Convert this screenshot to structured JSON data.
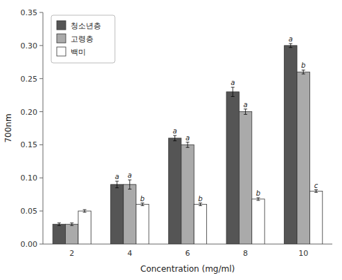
{
  "chart_data": {
    "type": "bar",
    "categories": [
      "2",
      "4",
      "6",
      "8",
      "10"
    ],
    "series": [
      {
        "name": "청소년층",
        "color": "#555555",
        "values": [
          0.03,
          0.09,
          0.16,
          0.23,
          0.3
        ],
        "errors": [
          0.002,
          0.005,
          0.004,
          0.007,
          0.003
        ],
        "annotations": [
          null,
          "a",
          "a",
          "a",
          "a"
        ]
      },
      {
        "name": "고령층",
        "color": "#aaaaaa",
        "values": [
          0.03,
          0.09,
          0.15,
          0.2,
          0.26
        ],
        "errors": [
          0.002,
          0.007,
          0.004,
          0.004,
          0.003
        ],
        "annotations": [
          null,
          "a",
          "a",
          "a",
          "b"
        ]
      },
      {
        "name": "백미",
        "color": "#ffffff",
        "values": [
          0.05,
          0.06,
          0.06,
          0.068,
          0.08
        ],
        "errors": [
          0.002,
          0.002,
          0.002,
          0.002,
          0.002
        ],
        "annotations": [
          null,
          "b",
          "b",
          "b",
          "c"
        ]
      }
    ],
    "xlabel": "Concentration (mg/ml)",
    "ylabel": "700nm",
    "ylim": [
      0,
      0.35
    ],
    "yticks": [
      {
        "value": 0,
        "label": "0.00"
      },
      0.05,
      {
        "value": 0.1,
        "label": "0.10"
      },
      0.15,
      {
        "value": 0.2,
        "label": "0.20"
      },
      0.25,
      {
        "value": 0.3,
        "label": "0.30"
      },
      0.35
    ],
    "grid": false,
    "legend": "upper left"
  }
}
